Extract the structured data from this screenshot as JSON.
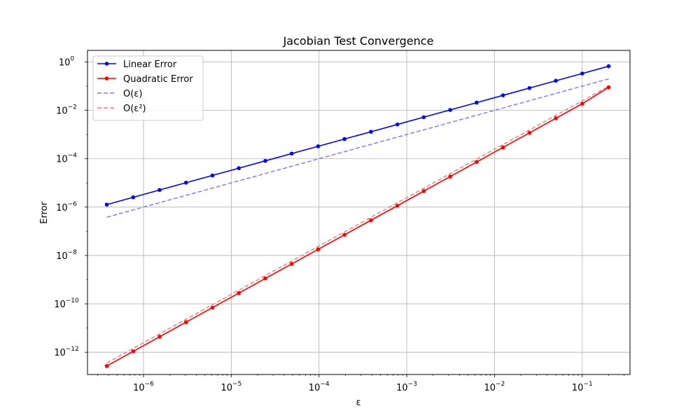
{
  "chart_data": {
    "type": "line",
    "title": "Jacobian Test Convergence",
    "xlabel": "ε",
    "ylabel": "Error",
    "xscale": "log",
    "yscale": "log",
    "xlim": [
      2.3e-07,
      0.35
    ],
    "ylim": [
      1.2e-13,
      3.0
    ],
    "grid": true,
    "legend_position": "top-left",
    "x_ticks": [
      {
        "value": 1e-06,
        "base": "10",
        "exp": "−6"
      },
      {
        "value": 1e-05,
        "base": "10",
        "exp": "−5"
      },
      {
        "value": 0.0001,
        "base": "10",
        "exp": "−4"
      },
      {
        "value": 0.001,
        "base": "10",
        "exp": "−3"
      },
      {
        "value": 0.01,
        "base": "10",
        "exp": "−2"
      },
      {
        "value": 0.1,
        "base": "10",
        "exp": "−1"
      }
    ],
    "y_ticks": [
      {
        "value": 1.0,
        "base": "10",
        "exp": "0"
      },
      {
        "value": 0.01,
        "base": "10",
        "exp": "−2"
      },
      {
        "value": 0.0001,
        "base": "10",
        "exp": "−4"
      },
      {
        "value": 1e-06,
        "base": "10",
        "exp": "−6"
      },
      {
        "value": 1e-08,
        "base": "10",
        "exp": "−8"
      },
      {
        "value": 1e-10,
        "base": "10",
        "exp": "−10"
      },
      {
        "value": 1e-12,
        "base": "10",
        "exp": "−12"
      }
    ],
    "x": [
      3.8147e-07,
      7.6294e-07,
      1.5259e-06,
      3.0518e-06,
      6.1035e-06,
      1.2207e-05,
      2.4414e-05,
      4.8828e-05,
      9.7656e-05,
      0.00019531,
      0.00039063,
      0.00078125,
      0.0015625,
      0.003125,
      0.00625,
      0.0125,
      0.025,
      0.05,
      0.1,
      0.2
    ],
    "series": [
      {
        "name": "Linear Error",
        "color": "#0000ff",
        "style": "solid",
        "marker": "dot",
        "values": [
          1.27e-06,
          2.54e-06,
          5.09e-06,
          1.02e-05,
          2.03e-05,
          4.07e-05,
          8.14e-05,
          0.000163,
          0.000326,
          0.000651,
          0.0013,
          0.0026,
          0.00521,
          0.0104,
          0.0208,
          0.0417,
          0.0833,
          0.167,
          0.333,
          0.667
        ]
      },
      {
        "name": "Quadratic Error",
        "color": "#ff0000",
        "style": "solid",
        "marker": "dot",
        "values": [
          2.7e-13,
          1.09e-12,
          4.37e-12,
          1.75e-11,
          6.98e-11,
          2.79e-10,
          1.12e-09,
          4.47e-09,
          1.79e-08,
          7.15e-08,
          2.86e-07,
          1.14e-06,
          4.58e-06,
          1.83e-05,
          7.32e-05,
          0.000293,
          0.00117,
          0.00469,
          0.0188,
          0.09
        ]
      },
      {
        "name": "O(ε)",
        "color": "#7777ff",
        "style": "dashed",
        "marker": "none",
        "values": [
          3.8147e-07,
          7.6294e-07,
          1.5259e-06,
          3.0518e-06,
          6.1035e-06,
          1.2207e-05,
          2.4414e-05,
          4.8828e-05,
          9.7656e-05,
          0.00019531,
          0.00039063,
          0.00078125,
          0.0015625,
          0.003125,
          0.00625,
          0.0125,
          0.025,
          0.05,
          0.1,
          0.2
        ]
      },
      {
        "name": "O(ε²)",
        "color": "#ff7777",
        "style": "dashed",
        "marker": "none",
        "values": [
          3.6e-13,
          1.44e-12,
          5.76e-12,
          2.3e-11,
          9.21e-11,
          3.69e-10,
          1.47e-09,
          5.9e-09,
          2.36e-08,
          9.44e-08,
          3.77e-07,
          1.51e-06,
          6.04e-06,
          2.42e-05,
          9.67e-05,
          0.000387,
          0.00155,
          0.00619,
          0.0248,
          0.099
        ]
      }
    ]
  }
}
